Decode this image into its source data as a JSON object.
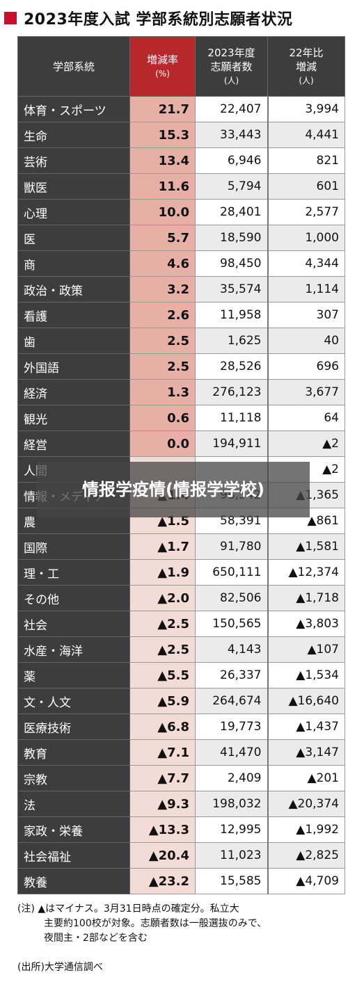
{
  "title": "2023年度入試 学部系統別志願者状況",
  "chart_data": {
    "type": "table",
    "columns": [
      {
        "label": "学部系統",
        "unit": ""
      },
      {
        "label": "増減率",
        "unit": "(%)"
      },
      {
        "label": "2023年度志願者数",
        "unit": "(人)"
      },
      {
        "label": "22年比増減",
        "unit": "(人)"
      }
    ],
    "rows": [
      {
        "category": "体育・スポーツ",
        "rate": "21.7",
        "applicants": "22,407",
        "change": "3,994"
      },
      {
        "category": "生命",
        "rate": "15.3",
        "applicants": "33,443",
        "change": "4,441"
      },
      {
        "category": "芸術",
        "rate": "13.4",
        "applicants": "6,946",
        "change": "821"
      },
      {
        "category": "獣医",
        "rate": "11.6",
        "applicants": "5,794",
        "change": "601"
      },
      {
        "category": "心理",
        "rate": "10.0",
        "applicants": "28,401",
        "change": "2,577"
      },
      {
        "category": "医",
        "rate": "5.7",
        "applicants": "18,590",
        "change": "1,000"
      },
      {
        "category": "商",
        "rate": "4.6",
        "applicants": "98,450",
        "change": "4,344"
      },
      {
        "category": "政治・政策",
        "rate": "3.2",
        "applicants": "35,574",
        "change": "1,114"
      },
      {
        "category": "看護",
        "rate": "2.6",
        "applicants": "11,958",
        "change": "307"
      },
      {
        "category": "歯",
        "rate": "2.5",
        "applicants": "1,625",
        "change": "40"
      },
      {
        "category": "外国語",
        "rate": "2.5",
        "applicants": "28,526",
        "change": "696"
      },
      {
        "category": "経済",
        "rate": "1.3",
        "applicants": "276,123",
        "change": "3,677"
      },
      {
        "category": "観光",
        "rate": "0.6",
        "applicants": "11,118",
        "change": "64"
      },
      {
        "category": "経営",
        "rate": "0.0",
        "applicants": "194,911",
        "change": "▲2"
      },
      {
        "category": "人間",
        "rate": "",
        "applicants": "",
        "change": "▲2"
      },
      {
        "category": "情報・メディア",
        "rate": "▲1.4",
        "applicants": "98,542",
        "change": "▲1,365"
      },
      {
        "category": "農",
        "rate": "▲1.5",
        "applicants": "58,391",
        "change": "▲861"
      },
      {
        "category": "国際",
        "rate": "▲1.7",
        "applicants": "91,780",
        "change": "▲1,581"
      },
      {
        "category": "理・工",
        "rate": "▲1.9",
        "applicants": "650,111",
        "change": "▲12,374"
      },
      {
        "category": "その他",
        "rate": "▲2.0",
        "applicants": "82,506",
        "change": "▲1,718"
      },
      {
        "category": "社会",
        "rate": "▲2.5",
        "applicants": "150,565",
        "change": "▲3,803"
      },
      {
        "category": "水産・海洋",
        "rate": "▲2.5",
        "applicants": "4,143",
        "change": "▲107"
      },
      {
        "category": "薬",
        "rate": "▲5.5",
        "applicants": "26,337",
        "change": "▲1,534"
      },
      {
        "category": "文・人文",
        "rate": "▲5.9",
        "applicants": "264,674",
        "change": "▲16,640"
      },
      {
        "category": "医療技術",
        "rate": "▲6.8",
        "applicants": "19,773",
        "change": "▲1,437"
      },
      {
        "category": "教育",
        "rate": "▲7.1",
        "applicants": "41,470",
        "change": "▲3,147"
      },
      {
        "category": "宗教",
        "rate": "▲7.7",
        "applicants": "2,409",
        "change": "▲201"
      },
      {
        "category": "法",
        "rate": "▲9.3",
        "applicants": "198,032",
        "change": "▲20,374"
      },
      {
        "category": "家政・栄養",
        "rate": "▲13.3",
        "applicants": "12,995",
        "change": "▲1,992"
      },
      {
        "category": "社会福祉",
        "rate": "▲20.4",
        "applicants": "11,023",
        "change": "▲2,825"
      },
      {
        "category": "教養",
        "rate": "▲23.2",
        "applicants": "15,585",
        "change": "▲4,709"
      }
    ]
  },
  "notes": [
    "(注) ▲はマイナス。3月31日時点の確定分。私立大",
    "主要約100校が対象。志願者数は一般選抜のみで、",
    "夜間主・2部などを含む"
  ],
  "source": "(出所)大学通信調べ",
  "overlay_text": "情报学疫情(情报学学校)",
  "colors": {
    "header_bg": "#3d3d3d",
    "header_highlight": "#b8272c",
    "rate_positive": "#e7b0a7",
    "rate_negative": "#f4dcd6",
    "title_square": "#c8102e"
  }
}
